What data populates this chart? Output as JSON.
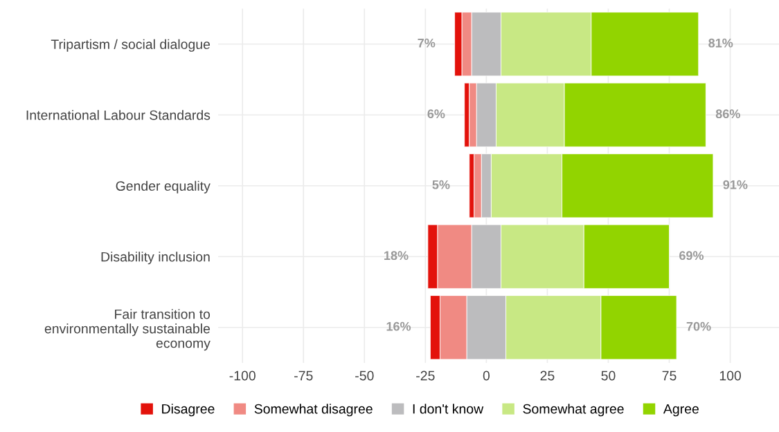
{
  "chart_data": {
    "type": "bar",
    "orientation": "horizontal",
    "categories": [
      "Tripartism / social dialogue",
      "International Labour Standards",
      "Gender equality",
      "Disability inclusion",
      "Fair transition to\nenvironmentally sustainable\neconomy"
    ],
    "series": [
      {
        "name": "Disagree",
        "color": "#e3120b",
        "base": [
          -13,
          -9,
          -7,
          -24,
          -23
        ],
        "values": [
          3,
          2,
          2,
          4,
          4
        ]
      },
      {
        "name": "Somewhat disagree",
        "color": "#f08a83",
        "base": [
          -10,
          -7,
          -5,
          -20,
          -19
        ],
        "values": [
          4,
          3,
          3,
          14,
          11
        ]
      },
      {
        "name": "I don't know",
        "color": "#bcbcbe",
        "base": [
          -6,
          -4,
          -2,
          -6,
          -8
        ],
        "values": [
          12,
          8,
          4,
          12,
          16
        ]
      },
      {
        "name": "Somewhat agree",
        "color": "#c8e884",
        "base": [
          6,
          4,
          2,
          6,
          8
        ],
        "values": [
          37,
          28,
          29,
          34,
          39
        ]
      },
      {
        "name": "Agree",
        "color": "#92d400",
        "base": [
          43,
          32,
          31,
          40,
          47
        ],
        "values": [
          44,
          58,
          62,
          35,
          31
        ]
      }
    ],
    "annotations": [
      "7%",
      "81%",
      "6%",
      "86%",
      "5%",
      "91%",
      "18%",
      "69%",
      "16%",
      "70%"
    ],
    "xlim": [
      -110,
      120
    ],
    "xticks": [
      {
        "value": -100,
        "label": "-100"
      },
      {
        "value": -75,
        "label": "-75"
      },
      {
        "value": -50,
        "label": "-50"
      },
      {
        "value": -25,
        "label": "-25"
      },
      0,
      25,
      50,
      75,
      100
    ],
    "grid": true,
    "legend": "bottom"
  }
}
